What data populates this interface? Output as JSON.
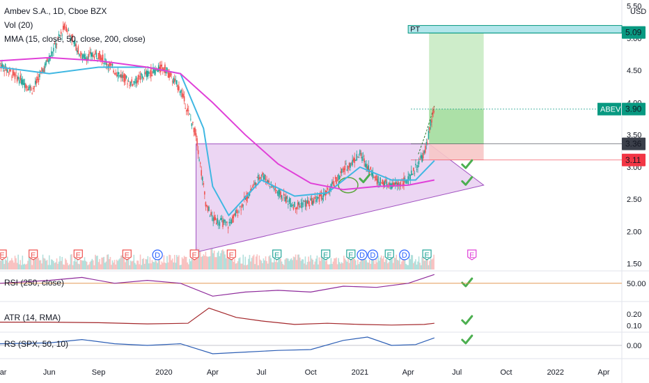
{
  "header": {
    "title": "Ambev S.A., 1D, Cboe BZX",
    "vol_label": "Vol (20)",
    "mma_label": "MMA (15, close, 50, close, 200, close)"
  },
  "currency": "USD",
  "panes": {
    "rsi_label": "RSI (250, close)",
    "atr_label": "ATR (14, RMA)",
    "rs_label": "RS (SPX, 50, 10)"
  },
  "price_tags": {
    "ticker": "ABEV",
    "last": "3.90",
    "entry": "3.36",
    "stop": "3.11",
    "target": "5.09",
    "pt_label": "PT"
  },
  "colors": {
    "ma_fast": "#3fb7e2",
    "ma_slow": "#e040d8",
    "up_candle": "#26a69a",
    "down_candle": "#ef5350",
    "triangle_fill": "#e6c8ef",
    "target_fill": "#b9e6b3",
    "stop_fill": "#f7c7c7",
    "tag_green": "#089981",
    "tag_red": "#f23645",
    "tag_dark": "#3b3f4a",
    "rsi_line": "#8e2a9b",
    "atr_line": "#a3262a",
    "rs_line": "#2c5eb5",
    "check": "#4caf50"
  },
  "events": [
    {
      "type": "E",
      "x": "2019-03-05"
    },
    {
      "type": "E",
      "x": "2019-05-02"
    },
    {
      "type": "E",
      "x": "2019-07-25"
    },
    {
      "type": "E",
      "x": "2019-10-24"
    },
    {
      "type": "D",
      "x": "2019-12-20"
    },
    {
      "type": "E",
      "x": "2020-02-27"
    },
    {
      "type": "E",
      "x": "2020-05-06"
    },
    {
      "type": "E",
      "x": "2020-07-30"
    },
    {
      "type": "E",
      "x": "2020-10-29"
    },
    {
      "type": "E",
      "x": "2020-12-15"
    },
    {
      "type": "D",
      "x": "2021-01-05"
    },
    {
      "type": "D",
      "x": "2021-01-25"
    },
    {
      "type": "E",
      "x": "2021-02-25"
    },
    {
      "type": "D",
      "x": "2021-03-25"
    },
    {
      "type": "E",
      "x": "2021-05-06"
    },
    {
      "type": "E",
      "x": "2021-07-29"
    }
  ],
  "chart_data": [
    {
      "type": "line",
      "pane": "price",
      "series": [
        {
          "name": "Close",
          "x": [
            "2019-03-01",
            "2019-04-01",
            "2019-05-01",
            "2019-06-01",
            "2019-07-01",
            "2019-08-01",
            "2019-09-01",
            "2019-10-01",
            "2019-11-01",
            "2019-12-01",
            "2020-01-01",
            "2020-02-01",
            "2020-03-01",
            "2020-03-20",
            "2020-04-01",
            "2020-05-01",
            "2020-06-01",
            "2020-07-01",
            "2020-08-01",
            "2020-09-01",
            "2020-10-01",
            "2020-11-01",
            "2020-12-01",
            "2021-01-01",
            "2021-02-01",
            "2021-03-01",
            "2021-04-01",
            "2021-05-01",
            "2021-05-20"
          ],
          "values": [
            4.6,
            4.4,
            4.2,
            4.7,
            5.2,
            4.7,
            4.75,
            4.5,
            4.3,
            4.45,
            4.55,
            4.2,
            3.5,
            2.4,
            2.2,
            2.1,
            2.5,
            2.9,
            2.6,
            2.4,
            2.45,
            2.6,
            2.95,
            3.2,
            2.8,
            2.7,
            2.8,
            3.2,
            3.9
          ]
        },
        {
          "name": "",
          "x": [
            "2019-03-01",
            "2019-06-01",
            "2019-09-01",
            "2019-12-01",
            "2020-02-01",
            "2020-03-15",
            "2020-04-01",
            "2020-05-01",
            "2020-07-01",
            "2020-09-01",
            "2020-11-01",
            "2021-01-01",
            "2021-03-01",
            "2021-04-15",
            "2021-05-20"
          ],
          "values": [
            4.55,
            4.45,
            4.55,
            4.55,
            4.45,
            3.6,
            2.7,
            2.25,
            2.8,
            2.55,
            2.6,
            3.0,
            2.8,
            2.8,
            3.1
          ]
        },
        {
          "name": "",
          "x": [
            "2019-03-01",
            "2019-06-01",
            "2019-09-01",
            "2019-12-01",
            "2020-02-01",
            "2020-04-01",
            "2020-06-01",
            "2020-08-01",
            "2020-10-01",
            "2020-12-01",
            "2021-02-01",
            "2021-04-01",
            "2021-05-20"
          ],
          "values": [
            4.65,
            4.7,
            4.65,
            4.55,
            4.45,
            4.0,
            3.5,
            3.05,
            2.75,
            2.65,
            2.7,
            2.72,
            2.8
          ]
        }
      ],
      "ylim": [
        1.4,
        5.55
      ],
      "ytick_labels": [
        "5.50",
        "5.00",
        "4.50",
        "4.00",
        "3.50",
        "3.00",
        "2.50",
        "2.00",
        "1.50"
      ],
      "ytick_values": [
        5.5,
        5.0,
        4.5,
        4.0,
        3.5,
        3.0,
        2.5,
        2.0,
        1.5
      ],
      "xlim": [
        "2019-03-01",
        "2022-05-01"
      ],
      "xtick_labels": [
        "Mar",
        "Jun",
        "Sep",
        "2020",
        "Apr",
        "Jul",
        "Oct",
        "2021",
        "Apr",
        "Jul",
        "Oct",
        "2022",
        "Apr"
      ],
      "xtick_values": [
        "2019-03-01",
        "2019-06-01",
        "2019-09-01",
        "2020-01-01",
        "2020-04-01",
        "2020-07-01",
        "2020-10-01",
        "2021-01-01",
        "2021-04-01",
        "2021-07-01",
        "2021-10-01",
        "2022-01-01",
        "2022-04-01"
      ],
      "annotations": {
        "triangle": {
          "x": [
            "2020-03-01",
            "2020-03-01",
            "2021-05-10",
            "2021-08-20"
          ],
          "values": [
            1.68,
            3.36,
            3.36,
            2.72
          ]
        },
        "target_zone": {
          "x": [
            "2021-05-10",
            "2021-08-20"
          ],
          "y": [
            3.36,
            5.09
          ]
        },
        "stop_zone": {
          "x": [
            "2021-05-10",
            "2021-08-20"
          ],
          "y": [
            3.11,
            3.36
          ]
        }
      },
      "grid": false
    },
    {
      "type": "line",
      "pane": "rsi",
      "series": [
        {
          "name": "RSI",
          "x": [
            "2019-03-01",
            "2019-06-01",
            "2019-08-01",
            "2019-10-01",
            "2019-12-01",
            "2020-02-01",
            "2020-04-01",
            "2020-06-01",
            "2020-08-01",
            "2020-10-01",
            "2020-12-01",
            "2021-02-01",
            "2021-04-01",
            "2021-05-20"
          ],
          "values": [
            50.0,
            50.5,
            51.0,
            50.0,
            50.5,
            50.0,
            47.8,
            48.5,
            48.8,
            48.5,
            49.5,
            49.3,
            50.0,
            51.5
          ]
        }
      ],
      "ylim": [
        47,
        52
      ],
      "ytick_labels": [
        "50.00"
      ],
      "ytick_values": [
        50
      ]
    },
    {
      "type": "line",
      "pane": "atr",
      "series": [
        {
          "name": "ATR",
          "x": [
            "2019-03-01",
            "2019-06-01",
            "2019-09-01",
            "2019-12-01",
            "2020-02-15",
            "2020-03-25",
            "2020-05-15",
            "2020-07-01",
            "2020-09-01",
            "2020-11-01",
            "2021-01-01",
            "2021-03-01",
            "2021-05-01",
            "2021-05-20"
          ],
          "values": [
            0.13,
            0.13,
            0.125,
            0.115,
            0.12,
            0.25,
            0.17,
            0.14,
            0.11,
            0.12,
            0.11,
            0.105,
            0.11,
            0.12
          ]
        }
      ],
      "ylim": [
        0.05,
        0.3
      ],
      "ytick_labels": [
        "0.20",
        "0.10"
      ],
      "ytick_values": [
        0.2,
        0.1
      ]
    },
    {
      "type": "line",
      "pane": "rs",
      "series": [
        {
          "name": "RS",
          "x": [
            "2019-03-01",
            "2019-06-01",
            "2019-08-01",
            "2019-10-01",
            "2019-12-01",
            "2020-02-01",
            "2020-04-01",
            "2020-06-01",
            "2020-08-01",
            "2020-10-01",
            "2020-12-01",
            "2021-01-15",
            "2021-03-01",
            "2021-04-15",
            "2021-05-20"
          ],
          "values": [
            0.02,
            0.03,
            0.07,
            0.02,
            0.0,
            0.02,
            -0.1,
            -0.08,
            -0.06,
            -0.05,
            0.06,
            0.1,
            0.0,
            0.01,
            0.09
          ]
        }
      ],
      "ylim": [
        -0.15,
        0.15
      ],
      "ytick_labels": [
        "0.00"
      ],
      "ytick_values": [
        0.0
      ]
    }
  ]
}
